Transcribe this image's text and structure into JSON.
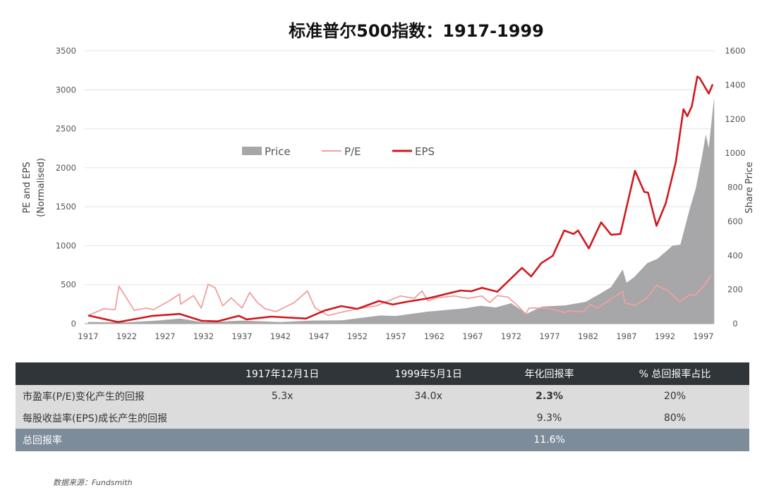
{
  "title": "标准普尔500指数：1917-1999",
  "chart_data": {
    "type": "line+area",
    "title": "标准普尔500指数：1917-1999",
    "xlabel": "",
    "ylabel_left": "PE and EPS (Normalised)",
    "ylabel_right": "Share Price",
    "xlim": [
      1917,
      1999
    ],
    "ylim_left": [
      0,
      3500
    ],
    "ylim_right": [
      0,
      1600
    ],
    "x_ticks": [
      "1917",
      "1922",
      "1927",
      "1932",
      "1937",
      "1942",
      "1947",
      "1952",
      "1957",
      "1962",
      "1967",
      "1972",
      "1977",
      "1982",
      "1987",
      "1992",
      "1997"
    ],
    "y_ticks_left": [
      "0",
      "500",
      "1000",
      "1500",
      "2000",
      "2500",
      "3000",
      "3500"
    ],
    "y_ticks_right": [
      "0",
      "200",
      "400",
      "600",
      "800",
      "1000",
      "1200",
      "1400",
      "1600"
    ],
    "grid": true,
    "legend_placement": "upper-center",
    "series": [
      {
        "name": "Price",
        "kind": "area",
        "axis": "right",
        "color": "#a7a7a9",
        "points": [
          [
            1917,
            10
          ],
          [
            1922,
            8
          ],
          [
            1926,
            18
          ],
          [
            1929,
            30
          ],
          [
            1932,
            8
          ],
          [
            1937,
            18
          ],
          [
            1942,
            9
          ],
          [
            1946,
            18
          ],
          [
            1950,
            20
          ],
          [
            1955,
            48
          ],
          [
            1957,
            45
          ],
          [
            1961,
            70
          ],
          [
            1966,
            90
          ],
          [
            1968,
            105
          ],
          [
            1970,
            95
          ],
          [
            1972,
            120
          ],
          [
            1974,
            58
          ],
          [
            1976,
            100
          ],
          [
            1979,
            107
          ],
          [
            1981.7,
            128
          ],
          [
            1983.5,
            174
          ],
          [
            1985,
            215
          ],
          [
            1986.5,
            318
          ],
          [
            1987,
            240
          ],
          [
            1988,
            273
          ],
          [
            1989.7,
            355
          ],
          [
            1991,
            380
          ],
          [
            1993,
            458
          ],
          [
            1994,
            463
          ],
          [
            1995.2,
            670
          ],
          [
            1996,
            793
          ],
          [
            1996.8,
            975
          ],
          [
            1997.3,
            1110
          ],
          [
            1997.7,
            1030
          ],
          [
            1998.2,
            1250
          ],
          [
            1998.4,
            1326
          ]
        ]
      },
      {
        "name": "P/E",
        "kind": "line",
        "axis": "left",
        "color": "#f0a0a0",
        "points": [
          [
            1917,
            105
          ],
          [
            1919,
            190
          ],
          [
            1920.5,
            180
          ],
          [
            1921,
            480
          ],
          [
            1923,
            170
          ],
          [
            1924.5,
            200
          ],
          [
            1925.5,
            180
          ],
          [
            1927.5,
            290
          ],
          [
            1928.9,
            380
          ],
          [
            1929,
            250
          ],
          [
            1930.7,
            360
          ],
          [
            1931.7,
            200
          ],
          [
            1932.6,
            505
          ],
          [
            1933.5,
            460
          ],
          [
            1934.5,
            230
          ],
          [
            1935.6,
            330
          ],
          [
            1937,
            200
          ],
          [
            1938,
            400
          ],
          [
            1939,
            270
          ],
          [
            1940,
            190
          ],
          [
            1941.4,
            155
          ],
          [
            1943.8,
            270
          ],
          [
            1945.5,
            420
          ],
          [
            1946.5,
            200
          ],
          [
            1948.2,
            105
          ],
          [
            1950.3,
            155
          ],
          [
            1952,
            190
          ],
          [
            1954.5,
            230
          ],
          [
            1957.6,
            355
          ],
          [
            1959.4,
            325
          ],
          [
            1960.4,
            420
          ],
          [
            1961.2,
            290
          ],
          [
            1962.2,
            330
          ],
          [
            1964.6,
            355
          ],
          [
            1966.4,
            325
          ],
          [
            1968.2,
            355
          ],
          [
            1969.2,
            270
          ],
          [
            1970.2,
            360
          ],
          [
            1971.6,
            340
          ],
          [
            1972.8,
            235
          ],
          [
            1973.9,
            125
          ],
          [
            1974.3,
            200
          ],
          [
            1976.8,
            200
          ],
          [
            1978.9,
            145
          ],
          [
            1979.8,
            165
          ],
          [
            1981.4,
            155
          ],
          [
            1982.3,
            245
          ],
          [
            1983.2,
            200
          ],
          [
            1986.5,
            415
          ],
          [
            1986.8,
            265
          ],
          [
            1988.1,
            235
          ],
          [
            1989.6,
            325
          ],
          [
            1990.9,
            490
          ],
          [
            1992.4,
            425
          ],
          [
            1993.9,
            280
          ],
          [
            1995.2,
            370
          ],
          [
            1996,
            370
          ],
          [
            1997.2,
            505
          ],
          [
            1998,
            625
          ]
        ]
      },
      {
        "name": "EPS",
        "kind": "line",
        "axis": "left",
        "color": "#d0191e",
        "points": [
          [
            1917,
            105
          ],
          [
            1920.9,
            20
          ],
          [
            1925.4,
            100
          ],
          [
            1928.9,
            125
          ],
          [
            1931.8,
            35
          ],
          [
            1933.8,
            30
          ],
          [
            1936.6,
            100
          ],
          [
            1937.6,
            55
          ],
          [
            1940.8,
            90
          ],
          [
            1945.3,
            65
          ],
          [
            1947.8,
            170
          ],
          [
            1949.9,
            225
          ],
          [
            1952,
            190
          ],
          [
            1954.8,
            290
          ],
          [
            1956.6,
            245
          ],
          [
            1958.4,
            280
          ],
          [
            1961.2,
            325
          ],
          [
            1965.4,
            425
          ],
          [
            1966.8,
            415
          ],
          [
            1968.2,
            460
          ],
          [
            1970.2,
            410
          ],
          [
            1973.4,
            715
          ],
          [
            1974.6,
            605
          ],
          [
            1975.9,
            775
          ],
          [
            1977.4,
            870
          ],
          [
            1978.9,
            1195
          ],
          [
            1980.1,
            1150
          ],
          [
            1980.7,
            1195
          ],
          [
            1982.1,
            965
          ],
          [
            1983.7,
            1300
          ],
          [
            1985,
            1140
          ],
          [
            1986.2,
            1150
          ],
          [
            1988.1,
            1960
          ],
          [
            1989.3,
            1690
          ],
          [
            1989.8,
            1680
          ],
          [
            1990.9,
            1255
          ],
          [
            1992.1,
            1545
          ],
          [
            1993.4,
            2070
          ],
          [
            1994.4,
            2750
          ],
          [
            1994.9,
            2660
          ],
          [
            1995.5,
            2790
          ],
          [
            1996.2,
            3170
          ],
          [
            1996.5,
            3150
          ],
          [
            1997.7,
            2950
          ],
          [
            1998.2,
            3070
          ]
        ]
      }
    ]
  },
  "table": {
    "headers": [
      "",
      "1917年12月1日",
      "1999年5月1日",
      "年化回报率",
      "% 总回报率占比"
    ],
    "rows": [
      [
        "市盈率(P/E)变化产生的回报",
        "5.3x",
        "34.0x",
        "2.3%",
        "20%"
      ],
      [
        "每股收益率(EPS)成长产生的回报",
        "",
        "",
        "9.3%",
        "80%"
      ]
    ],
    "total": [
      "总回报率",
      "",
      "",
      "11.6%",
      ""
    ],
    "highlight_color": "#d0191e"
  },
  "source": "数据来源：Fundsmith"
}
